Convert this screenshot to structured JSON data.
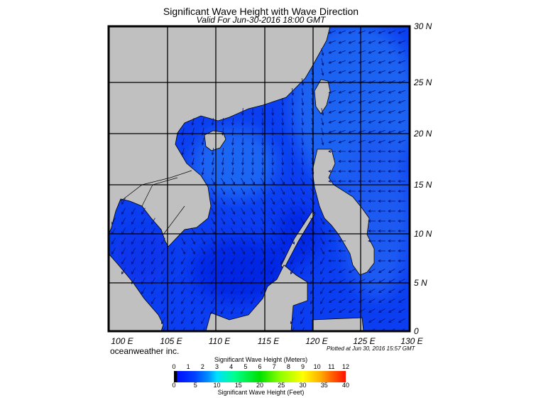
{
  "title": "Significant Wave Height with Wave Direction",
  "subtitle": "Valid For Jun-30-2016 18:00 GMT",
  "lat_labels": [
    "30 N",
    "25 N",
    "20 N",
    "15 N",
    "10 N",
    "5 N",
    "0"
  ],
  "lon_labels": [
    "100 E",
    "105 E",
    "110 E",
    "115 E",
    "120 E",
    "125 E",
    "130 E"
  ],
  "brand": "oceanweather inc.",
  "plotted": "Plotted at Jun 30, 2016 15:57 GMT",
  "colorbar": {
    "title_meters": "Significant Wave Height (Meters)",
    "title_feet": "Significant Wave Height (Feet)",
    "meters": [
      "0",
      "1",
      "2",
      "3",
      "4",
      "5",
      "6",
      "7",
      "8",
      "9",
      "10",
      "11",
      "12"
    ],
    "feet": [
      "0",
      "5",
      "10",
      "15",
      "20",
      "25",
      "30",
      "35",
      "40"
    ]
  },
  "colors": {
    "land": "#c0c0c0",
    "ocean": "#0b3ef0",
    "ocean_light": "#1e64f2",
    "ocean_dark": "#0626e4"
  }
}
